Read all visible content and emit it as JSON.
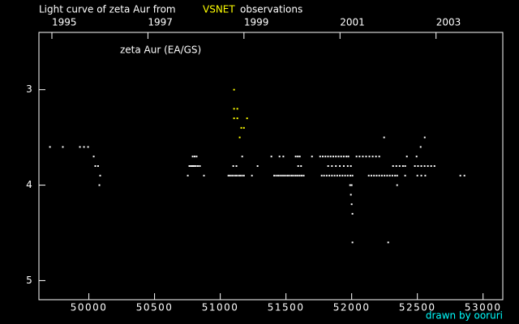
{
  "chart_data": {
    "type": "scatter",
    "title": [
      "Light curve of zeta Aur from",
      "VSNET",
      "observations"
    ],
    "label": "zeta Aur (EA/GS)",
    "credit": "drawn by ooruri",
    "xlim": [
      49620,
      53150
    ],
    "xticks": [
      50000,
      50500,
      51000,
      51500,
      52000,
      52500,
      53000
    ],
    "x2lim": [
      1994.73,
      2004.39
    ],
    "x2ticks": [
      1995,
      1997,
      1999,
      2001,
      2003
    ],
    "ylim": [
      2.4,
      5.2
    ],
    "yticks": [
      3,
      4,
      5
    ],
    "y_inverted": true,
    "series": [
      {
        "color": "#ffffff",
        "x": [
          49704,
          49802,
          49932,
          49963,
          49994,
          50037,
          50049,
          50070,
          50086,
          50080,
          50753,
          50765,
          50778,
          50790,
          50802,
          50815,
          50830,
          50845,
          50790,
          50805,
          50820,
          50876,
          51062,
          51075,
          51090,
          51105,
          51120,
          51135,
          51150,
          51165,
          51180,
          51099,
          51123,
          51167,
          51241,
          51284,
          51389,
          51410,
          51425,
          51440,
          51455,
          51470,
          51485,
          51500,
          51515,
          51530,
          51545,
          51560,
          51575,
          51590,
          51605,
          51620,
          51635,
          51451,
          51480,
          51574,
          51590,
          51605,
          51593,
          51615,
          51698,
          51760,
          51780,
          51800,
          51820,
          51840,
          51860,
          51880,
          51900,
          51920,
          51940,
          51960,
          51975,
          51772,
          51790,
          51810,
          51830,
          51850,
          51870,
          51890,
          51910,
          51930,
          51950,
          51970,
          51990,
          52006,
          51821,
          51850,
          51880,
          51910,
          51940,
          51970,
          51994,
          51988,
          52000,
          51994,
          52000,
          52006,
          52006,
          52037,
          52060,
          52085,
          52110,
          52135,
          52160,
          52185,
          52210,
          52130,
          52150,
          52170,
          52190,
          52210,
          52230,
          52250,
          52270,
          52290,
          52310,
          52330,
          52346,
          52247,
          52278,
          52315,
          52340,
          52365,
          52390,
          52407,
          52346,
          52407,
          52420,
          52494,
          52525,
          52556,
          52481,
          52505,
          52530,
          52555,
          52580,
          52605,
          52630,
          52500,
          52530,
          52560,
          52827,
          52858
        ],
        "values": [
          3.6,
          3.6,
          3.6,
          3.6,
          3.6,
          3.7,
          3.8,
          3.8,
          3.9,
          4.0,
          3.9,
          3.8,
          3.8,
          3.8,
          3.8,
          3.8,
          3.8,
          3.8,
          3.7,
          3.7,
          3.7,
          3.9,
          3.9,
          3.9,
          3.9,
          3.9,
          3.9,
          3.9,
          3.9,
          3.9,
          3.9,
          3.8,
          3.8,
          3.7,
          3.9,
          3.8,
          3.7,
          3.9,
          3.9,
          3.9,
          3.9,
          3.9,
          3.9,
          3.9,
          3.9,
          3.9,
          3.9,
          3.9,
          3.9,
          3.9,
          3.9,
          3.9,
          3.9,
          3.7,
          3.7,
          3.7,
          3.7,
          3.7,
          3.8,
          3.8,
          3.7,
          3.7,
          3.7,
          3.7,
          3.7,
          3.7,
          3.7,
          3.7,
          3.7,
          3.7,
          3.7,
          3.7,
          3.7,
          3.9,
          3.9,
          3.9,
          3.9,
          3.9,
          3.9,
          3.9,
          3.9,
          3.9,
          3.9,
          3.9,
          3.9,
          3.9,
          3.8,
          3.8,
          3.8,
          3.8,
          3.8,
          3.8,
          3.8,
          4.0,
          4.0,
          4.1,
          4.2,
          4.3,
          4.6,
          3.7,
          3.7,
          3.7,
          3.7,
          3.7,
          3.7,
          3.7,
          3.7,
          3.9,
          3.9,
          3.9,
          3.9,
          3.9,
          3.9,
          3.9,
          3.9,
          3.9,
          3.9,
          3.9,
          3.9,
          3.5,
          4.6,
          3.8,
          3.8,
          3.8,
          3.8,
          3.8,
          4.0,
          3.9,
          3.7,
          3.7,
          3.6,
          3.5,
          3.8,
          3.8,
          3.8,
          3.8,
          3.8,
          3.8,
          3.8,
          3.9,
          3.9,
          3.9,
          3.9,
          3.9
        ]
      },
      {
        "color": "#ffff00",
        "x": [
          51105,
          51105,
          51130,
          51105,
          51130,
          51160,
          51180,
          51148,
          51204
        ],
        "values": [
          3.0,
          3.2,
          3.2,
          3.3,
          3.3,
          3.4,
          3.4,
          3.5,
          3.3
        ]
      }
    ]
  }
}
